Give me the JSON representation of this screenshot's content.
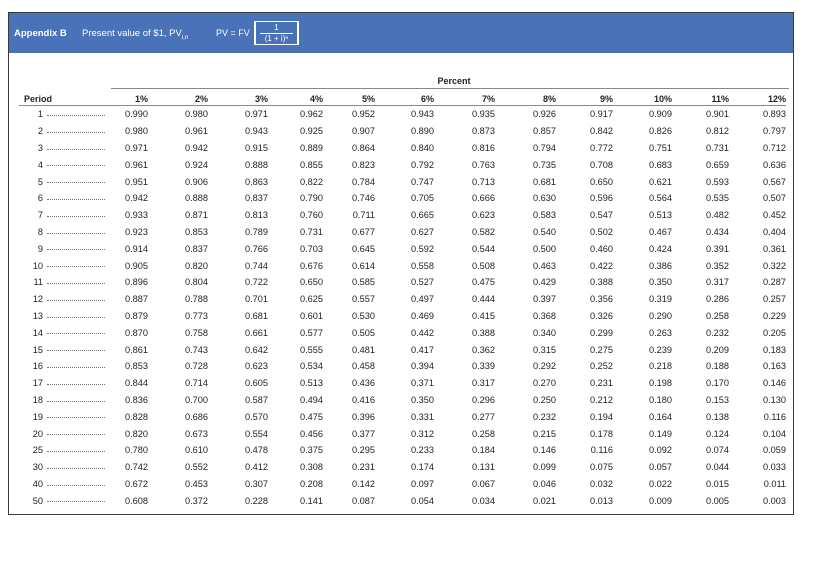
{
  "header": {
    "title": "Appendix B",
    "subtitle": "Present value of $1, PV",
    "subtitle_sub": "i,n",
    "formula_lhs": "PV = FV",
    "formula_num": "1",
    "formula_den": "(1 + i)ⁿ"
  },
  "table": {
    "group_label": "Percent",
    "period_label": "Period",
    "columns": [
      "1%",
      "2%",
      "3%",
      "4%",
      "5%",
      "6%",
      "7%",
      "8%",
      "9%",
      "10%",
      "11%",
      "12%"
    ],
    "rows": [
      {
        "period": "1",
        "values": [
          "0.990",
          "0.980",
          "0.971",
          "0.962",
          "0.952",
          "0.943",
          "0.935",
          "0.926",
          "0.917",
          "0.909",
          "0.901",
          "0.893"
        ]
      },
      {
        "period": "2",
        "values": [
          "0.980",
          "0.961",
          "0.943",
          "0.925",
          "0.907",
          "0.890",
          "0.873",
          "0.857",
          "0.842",
          "0.826",
          "0.812",
          "0.797"
        ]
      },
      {
        "period": "3",
        "values": [
          "0.971",
          "0.942",
          "0.915",
          "0.889",
          "0.864",
          "0.840",
          "0.816",
          "0.794",
          "0.772",
          "0.751",
          "0.731",
          "0.712"
        ]
      },
      {
        "period": "4",
        "values": [
          "0.961",
          "0.924",
          "0.888",
          "0.855",
          "0.823",
          "0.792",
          "0.763",
          "0.735",
          "0.708",
          "0.683",
          "0.659",
          "0.636"
        ]
      },
      {
        "period": "5",
        "values": [
          "0.951",
          "0.906",
          "0.863",
          "0.822",
          "0.784",
          "0.747",
          "0.713",
          "0.681",
          "0.650",
          "0.621",
          "0.593",
          "0.567"
        ]
      },
      {
        "period": "6",
        "values": [
          "0.942",
          "0.888",
          "0.837",
          "0.790",
          "0.746",
          "0.705",
          "0.666",
          "0.630",
          "0.596",
          "0.564",
          "0.535",
          "0.507"
        ]
      },
      {
        "period": "7",
        "values": [
          "0.933",
          "0.871",
          "0.813",
          "0.760",
          "0.711",
          "0.665",
          "0.623",
          "0.583",
          "0.547",
          "0.513",
          "0.482",
          "0.452"
        ]
      },
      {
        "period": "8",
        "values": [
          "0.923",
          "0.853",
          "0.789",
          "0.731",
          "0.677",
          "0.627",
          "0.582",
          "0.540",
          "0.502",
          "0.467",
          "0.434",
          "0.404"
        ]
      },
      {
        "period": "9",
        "values": [
          "0.914",
          "0.837",
          "0.766",
          "0.703",
          "0.645",
          "0.592",
          "0.544",
          "0.500",
          "0.460",
          "0.424",
          "0.391",
          "0.361"
        ]
      },
      {
        "period": "10",
        "values": [
          "0.905",
          "0.820",
          "0.744",
          "0.676",
          "0.614",
          "0.558",
          "0.508",
          "0.463",
          "0.422",
          "0.386",
          "0.352",
          "0.322"
        ]
      },
      {
        "period": "11",
        "values": [
          "0.896",
          "0.804",
          "0.722",
          "0.650",
          "0.585",
          "0.527",
          "0.475",
          "0.429",
          "0.388",
          "0.350",
          "0.317",
          "0.287"
        ]
      },
      {
        "period": "12",
        "values": [
          "0.887",
          "0.788",
          "0.701",
          "0.625",
          "0.557",
          "0.497",
          "0.444",
          "0.397",
          "0.356",
          "0.319",
          "0.286",
          "0.257"
        ]
      },
      {
        "period": "13",
        "values": [
          "0.879",
          "0.773",
          "0.681",
          "0.601",
          "0.530",
          "0.469",
          "0.415",
          "0.368",
          "0.326",
          "0.290",
          "0.258",
          "0.229"
        ]
      },
      {
        "period": "14",
        "values": [
          "0.870",
          "0.758",
          "0.661",
          "0.577",
          "0.505",
          "0.442",
          "0.388",
          "0.340",
          "0.299",
          "0.263",
          "0.232",
          "0.205"
        ]
      },
      {
        "period": "15",
        "values": [
          "0.861",
          "0.743",
          "0.642",
          "0.555",
          "0.481",
          "0.417",
          "0.362",
          "0.315",
          "0.275",
          "0.239",
          "0.209",
          "0.183"
        ]
      },
      {
        "period": "16",
        "values": [
          "0.853",
          "0.728",
          "0.623",
          "0.534",
          "0.458",
          "0.394",
          "0.339",
          "0.292",
          "0.252",
          "0.218",
          "0.188",
          "0.163"
        ]
      },
      {
        "period": "17",
        "values": [
          "0.844",
          "0.714",
          "0.605",
          "0.513",
          "0.436",
          "0.371",
          "0.317",
          "0.270",
          "0.231",
          "0.198",
          "0.170",
          "0.146"
        ]
      },
      {
        "period": "18",
        "values": [
          "0.836",
          "0.700",
          "0.587",
          "0.494",
          "0.416",
          "0.350",
          "0.296",
          "0.250",
          "0.212",
          "0.180",
          "0.153",
          "0.130"
        ]
      },
      {
        "period": "19",
        "values": [
          "0.828",
          "0.686",
          "0.570",
          "0.475",
          "0.396",
          "0.331",
          "0.277",
          "0.232",
          "0.194",
          "0.164",
          "0.138",
          "0.116"
        ]
      },
      {
        "period": "20",
        "values": [
          "0.820",
          "0.673",
          "0.554",
          "0.456",
          "0.377",
          "0.312",
          "0.258",
          "0.215",
          "0.178",
          "0.149",
          "0.124",
          "0.104"
        ]
      },
      {
        "period": "25",
        "values": [
          "0.780",
          "0.610",
          "0.478",
          "0.375",
          "0.295",
          "0.233",
          "0.184",
          "0.146",
          "0.116",
          "0.092",
          "0.074",
          "0.059"
        ]
      },
      {
        "period": "30",
        "values": [
          "0.742",
          "0.552",
          "0.412",
          "0.308",
          "0.231",
          "0.174",
          "0.131",
          "0.099",
          "0.075",
          "0.057",
          "0.044",
          "0.033"
        ]
      },
      {
        "period": "40",
        "values": [
          "0.672",
          "0.453",
          "0.307",
          "0.208",
          "0.142",
          "0.097",
          "0.067",
          "0.046",
          "0.032",
          "0.022",
          "0.015",
          "0.011"
        ]
      },
      {
        "period": "50",
        "values": [
          "0.608",
          "0.372",
          "0.228",
          "0.141",
          "0.087",
          "0.054",
          "0.034",
          "0.021",
          "0.013",
          "0.009",
          "0.005",
          "0.003"
        ]
      }
    ]
  },
  "colors": {
    "header_bg": "#4a72b8",
    "header_text": "#ffffff",
    "border": "#3a3a3a"
  }
}
